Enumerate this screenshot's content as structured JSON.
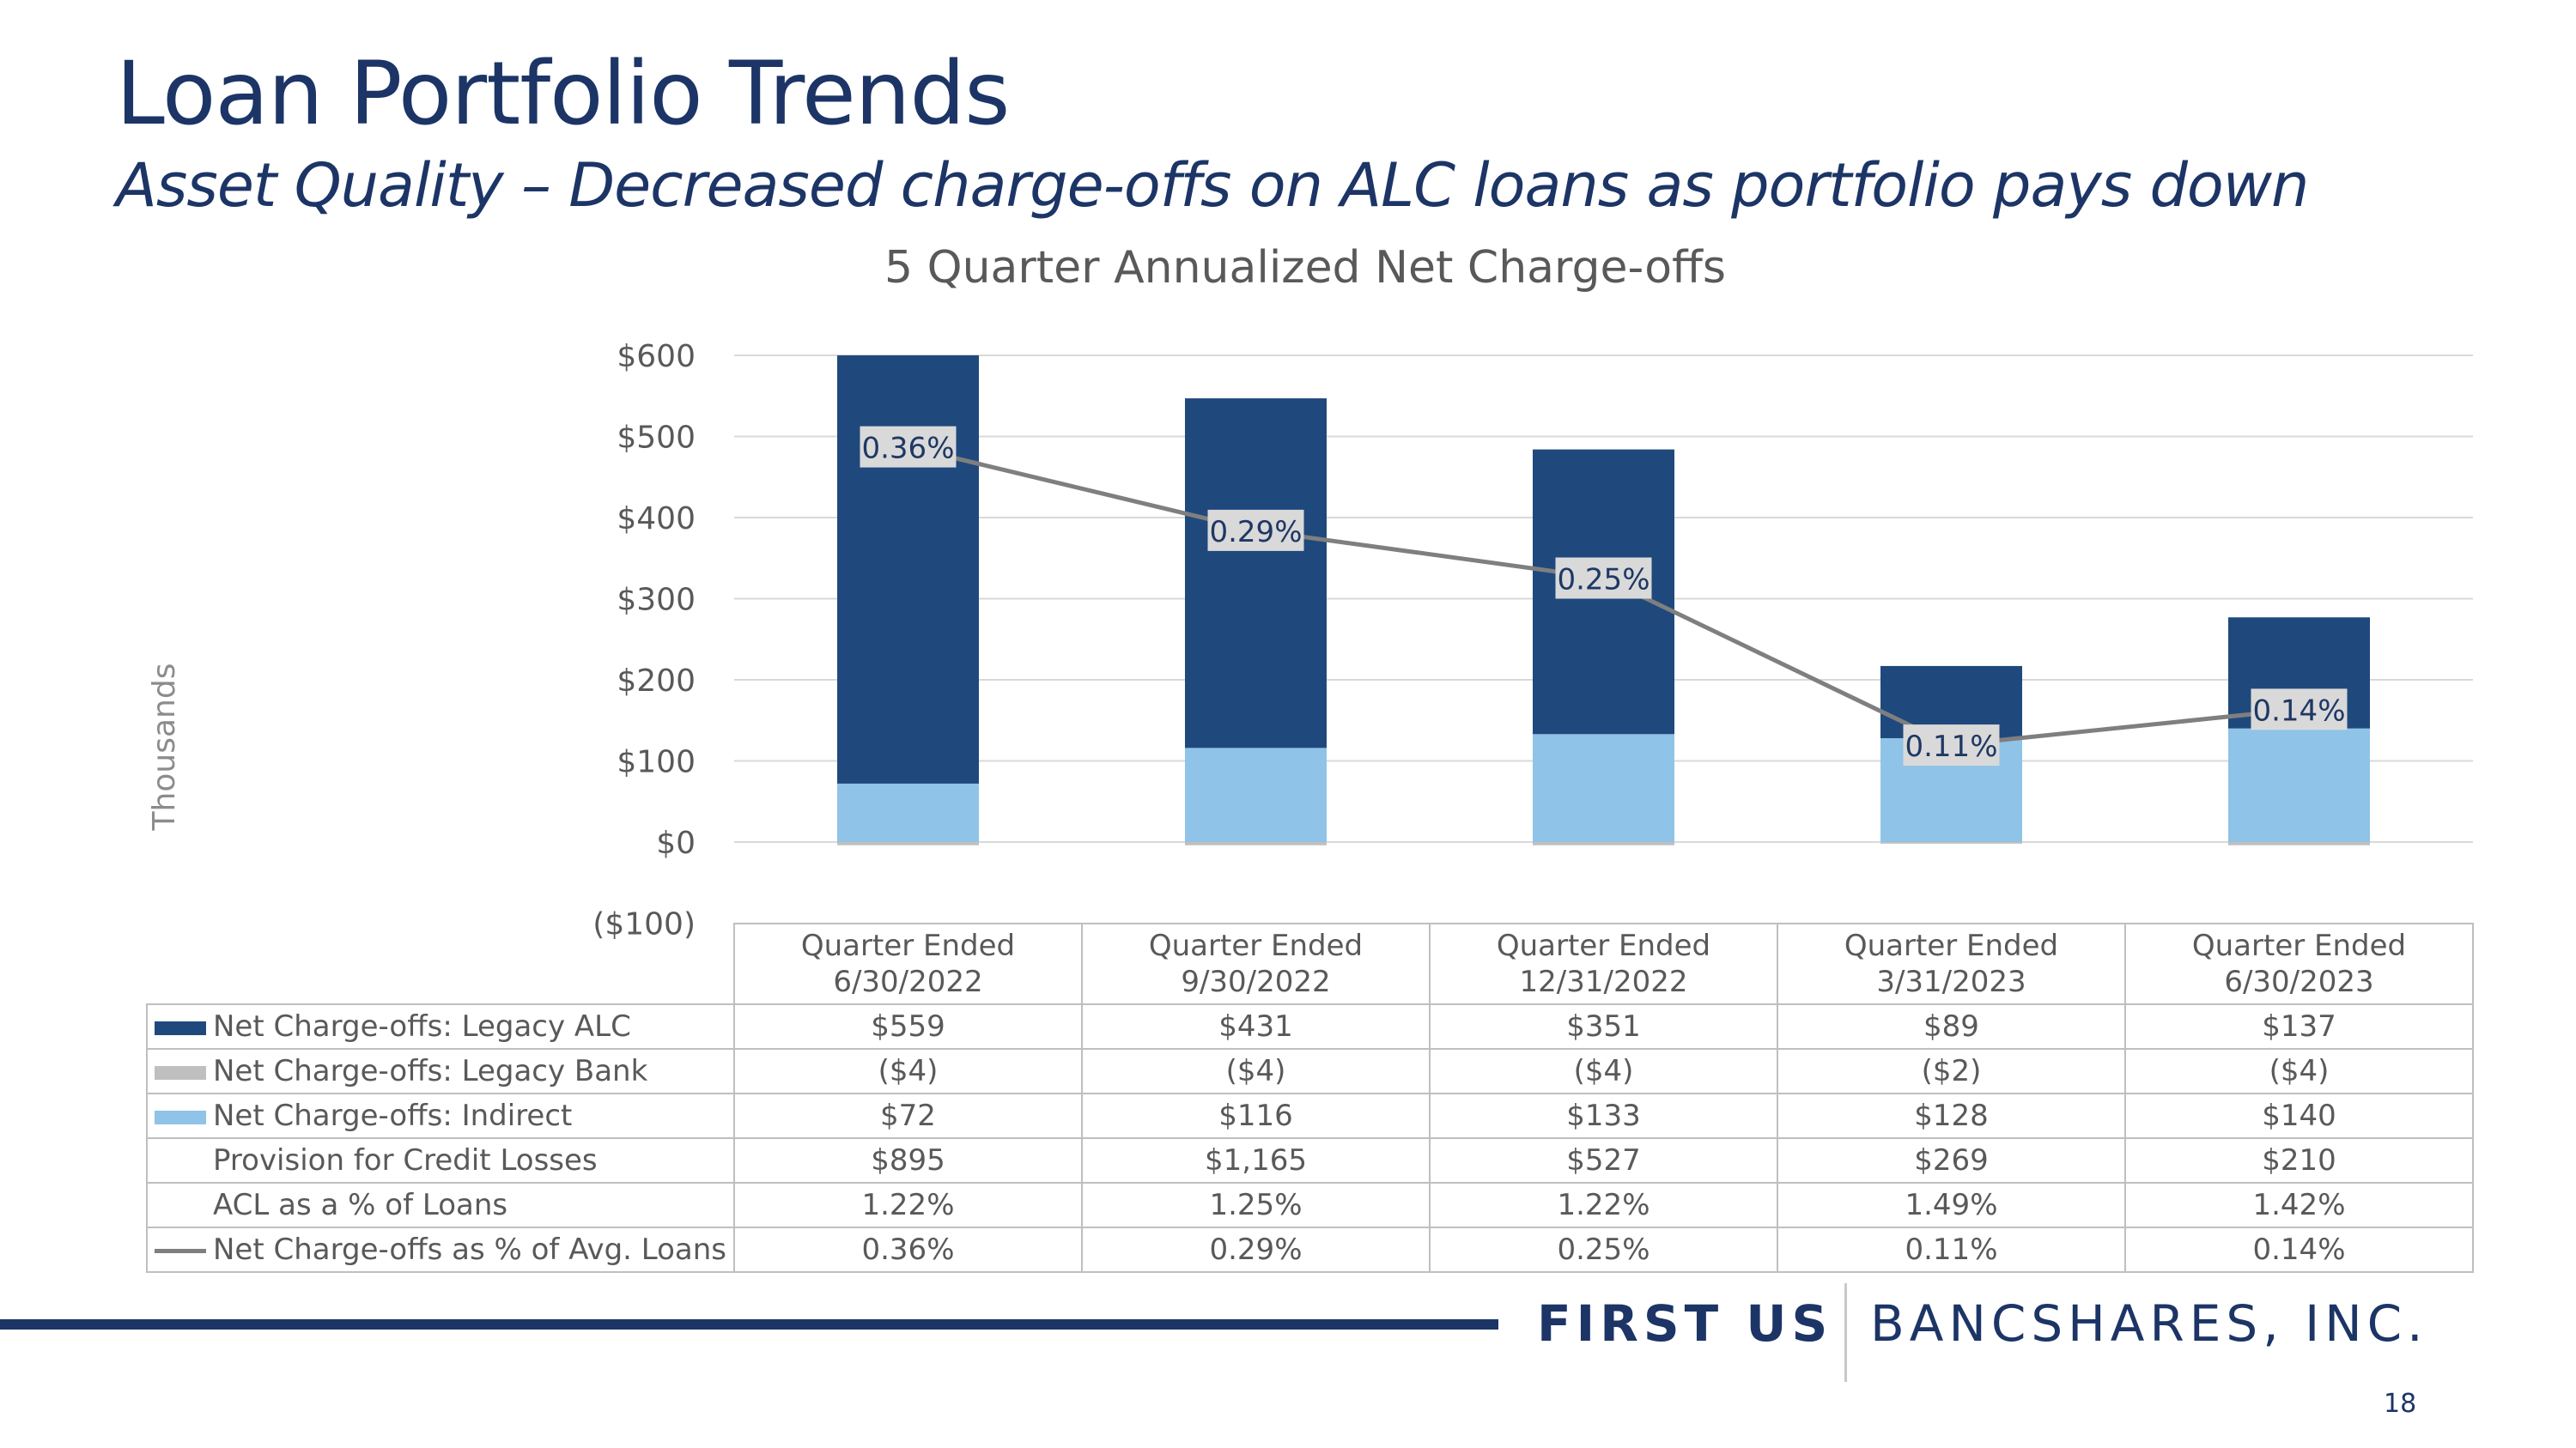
{
  "slide": {
    "title": "Loan Portfolio Trends",
    "subtitle": "Asset Quality – Decreased charge-offs on ALC loans as portfolio pays down",
    "page_number": "18"
  },
  "logo": {
    "part1": "FIRST US",
    "part2": "BANCSHARES, INC."
  },
  "chart_data": {
    "type": "bar",
    "stacked": true,
    "title": "5 Quarter Annualized Net Charge-offs",
    "ylabel": "Thousands",
    "ylim": [
      -100,
      600
    ],
    "yticks": [
      -100,
      0,
      100,
      200,
      300,
      400,
      500,
      600
    ],
    "ytick_labels": [
      "($100)",
      "$0",
      "$100",
      "$200",
      "$300",
      "$400",
      "$500",
      "$600"
    ],
    "categories": [
      "Quarter Ended 6/30/2022",
      "Quarter Ended 9/30/2022",
      "Quarter Ended 12/31/2022",
      "Quarter Ended 3/31/2023",
      "Quarter Ended 6/30/2023"
    ],
    "series": [
      {
        "name": "Net Charge-offs: Legacy ALC",
        "kind": "bar",
        "color": "#1f497d",
        "values": [
          559,
          431,
          351,
          89,
          137
        ]
      },
      {
        "name": "Net Charge-offs: Legacy Bank",
        "kind": "bar",
        "color": "#bfbfbf",
        "values": [
          -4,
          -4,
          -4,
          -2,
          -4
        ]
      },
      {
        "name": "Net Charge-offs: Indirect",
        "kind": "bar",
        "color": "#8fc3e7",
        "values": [
          72,
          116,
          133,
          128,
          140
        ]
      },
      {
        "name": "Net Charge-offs as % of Avg. Loans",
        "kind": "line",
        "color": "#7f7f7f",
        "secondary_axis": true,
        "values": [
          0.36,
          0.29,
          0.25,
          0.11,
          0.14
        ]
      }
    ],
    "line_labels": [
      "0.36%",
      "0.29%",
      "0.25%",
      "0.11%",
      "0.14%"
    ],
    "grid": true
  },
  "table": {
    "headers": [
      [
        "Quarter Ended",
        "6/30/2022"
      ],
      [
        "Quarter Ended",
        "9/30/2022"
      ],
      [
        "Quarter Ended",
        "12/31/2022"
      ],
      [
        "Quarter Ended",
        "3/31/2023"
      ],
      [
        "Quarter Ended",
        "6/30/2023"
      ]
    ],
    "rows": [
      {
        "label": "Net Charge-offs: Legacy ALC",
        "legend": "bar",
        "color": "#1f497d",
        "values": [
          "$559",
          "$431",
          "$351",
          "$89",
          "$137"
        ]
      },
      {
        "label": "Net Charge-offs: Legacy Bank",
        "legend": "bar",
        "color": "#bfbfbf",
        "values": [
          "($4)",
          "($4)",
          "($4)",
          "($2)",
          "($4)"
        ]
      },
      {
        "label": "Net Charge-offs: Indirect",
        "legend": "bar",
        "color": "#8fc3e7",
        "values": [
          "$72",
          "$116",
          "$133",
          "$128",
          "$140"
        ]
      },
      {
        "label": "Provision for Credit Losses",
        "legend": "none",
        "color": "",
        "values": [
          "$895",
          "$1,165",
          "$527",
          "$269",
          "$210"
        ]
      },
      {
        "label": "ACL as a % of Loans",
        "legend": "none",
        "color": "",
        "values": [
          "1.22%",
          "1.25%",
          "1.22%",
          "1.49%",
          "1.42%"
        ]
      },
      {
        "label": "Net Charge-offs as % of Avg. Loans",
        "legend": "line",
        "color": "#7f7f7f",
        "values": [
          "0.36%",
          "0.29%",
          "0.25%",
          "0.11%",
          "0.14%"
        ]
      }
    ]
  }
}
